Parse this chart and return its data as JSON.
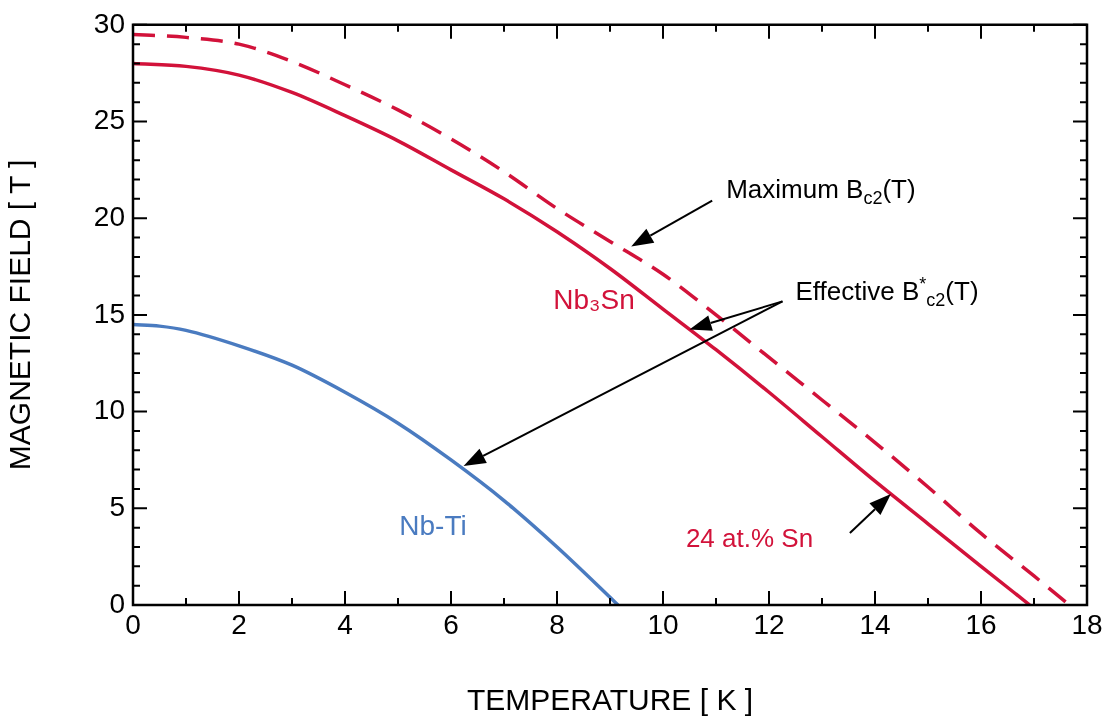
{
  "chart_data": {
    "type": "line",
    "xlabel": "TEMPERATURE [ K ]",
    "ylabel": "MAGNETIC FIELD [ T ]",
    "xlim": [
      0,
      18
    ],
    "xticks": [
      0,
      2,
      4,
      6,
      8,
      10,
      12,
      14,
      16,
      18
    ],
    "ylim": [
      0,
      30
    ],
    "yticks": [
      0,
      5,
      10,
      15,
      20,
      25,
      30
    ],
    "grid": false,
    "legend": false,
    "marker": "none",
    "series": [
      {
        "name": "Nb-Ti",
        "color": "#4a7bc0",
        "line_style": "solid",
        "x": [
          0,
          0.5,
          1,
          2,
          3,
          4,
          5,
          6,
          7,
          8,
          9,
          9.15
        ],
        "values": [
          14.5,
          14.42,
          14.2,
          13.4,
          12.4,
          11.0,
          9.4,
          7.5,
          5.4,
          3.0,
          0.4,
          0
        ]
      },
      {
        "name": "Nb₃Sn",
        "color": "#d2123a",
        "line_style": "solid",
        "x": [
          0,
          1,
          2,
          3,
          4,
          5,
          6,
          7,
          8,
          9,
          10,
          11,
          12,
          13,
          14,
          15,
          16,
          16.92
        ],
        "values": [
          28.0,
          27.85,
          27.4,
          26.5,
          25.3,
          24.0,
          22.5,
          21.0,
          19.3,
          17.4,
          15.3,
          13.2,
          11.0,
          8.7,
          6.4,
          4.2,
          2.0,
          0
        ]
      },
      {
        "color": "#d2123a",
        "line_style": "dashed",
        "x": [
          0,
          1,
          2,
          3,
          4,
          5,
          6,
          7,
          8,
          9,
          10,
          11,
          12,
          13,
          14,
          15,
          16,
          17,
          17.67
        ],
        "values": [
          29.5,
          29.35,
          29.0,
          28.1,
          26.9,
          25.6,
          24.1,
          22.4,
          20.5,
          18.8,
          17.1,
          15.0,
          12.8,
          10.6,
          8.4,
          6.1,
          3.7,
          1.5,
          0
        ]
      }
    ],
    "annotations": [
      "Maximum B$_{c2}$(T)",
      "Effective B$^{*}$$_{c2}$(T)",
      "24 at.% Sn"
    ]
  }
}
